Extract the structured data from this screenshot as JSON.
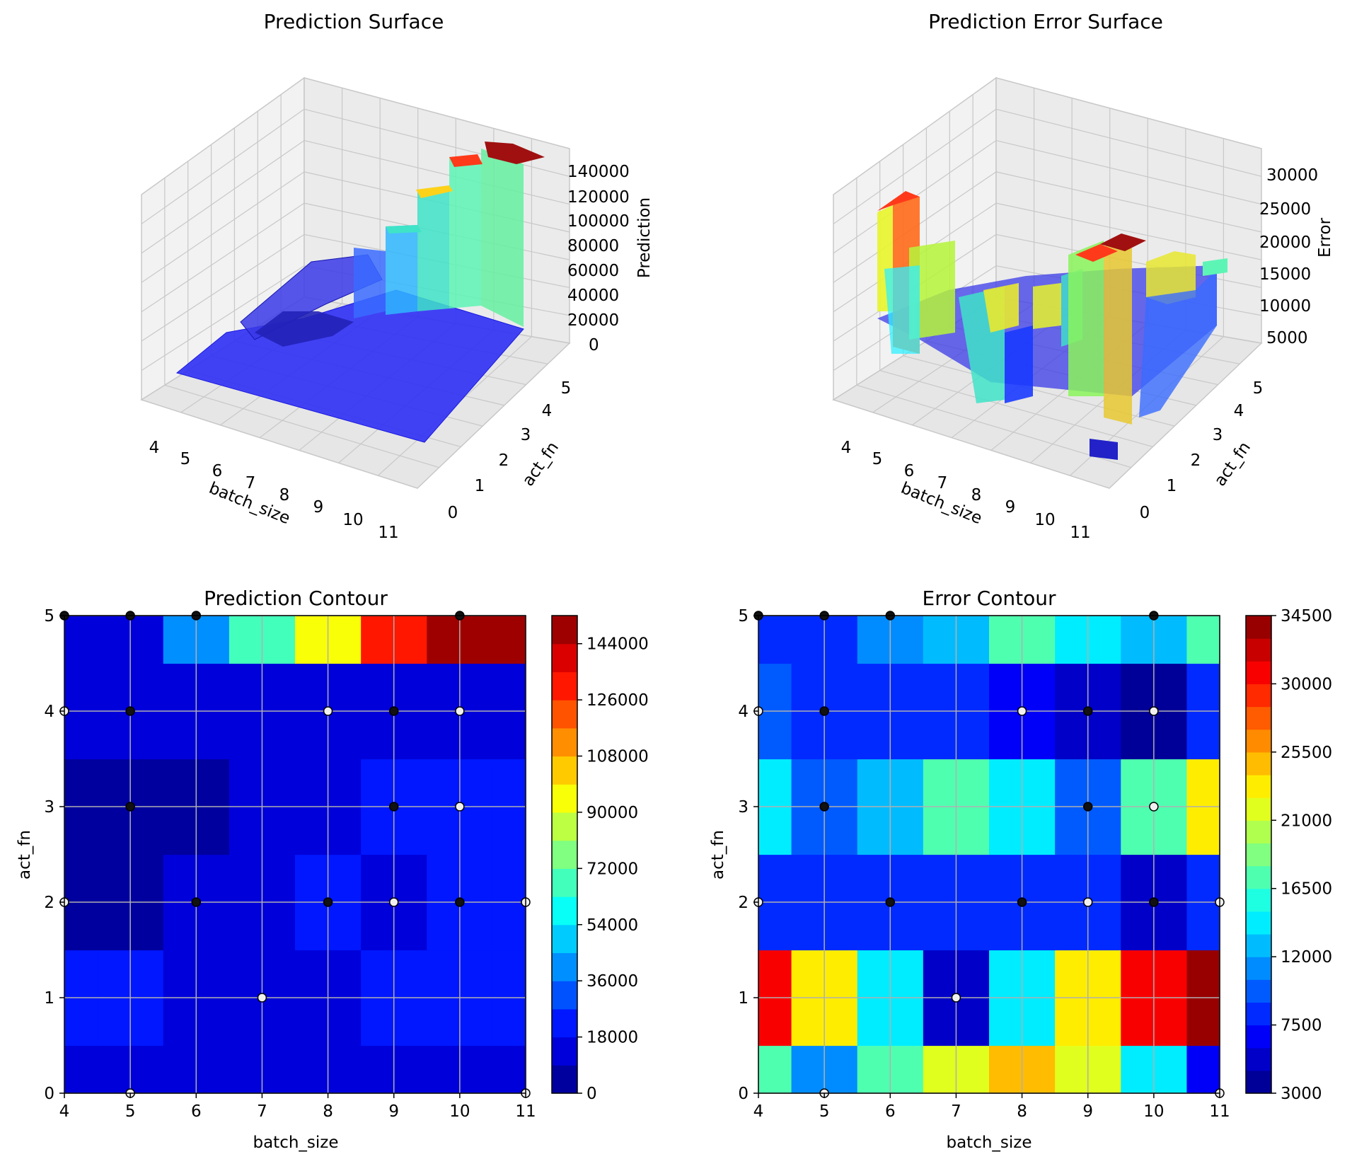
{
  "colors": {
    "background": "#ffffff",
    "grid": "#b0b0b0",
    "pane": "#f2f2f2",
    "pane_line": "#c8c8c8",
    "point_dark": "#111111",
    "point_light": "#f0f0f0"
  },
  "chart_data": [
    {
      "type": "surface3d",
      "title": "Prediction Surface",
      "xlabel": "batch_size",
      "ylabel": "act_fn",
      "zlabel": "Prediction",
      "x_ticks": [
        "4",
        "5",
        "6",
        "7",
        "8",
        "9",
        "10",
        "11"
      ],
      "y_ticks": [
        "0",
        "1",
        "2",
        "3",
        "4",
        "5"
      ],
      "z_ticks": [
        "0",
        "20000",
        "40000",
        "60000",
        "80000",
        "100000",
        "120000",
        "140000"
      ],
      "zlim": [
        0,
        150000
      ],
      "colormap": "jet"
    },
    {
      "type": "surface3d",
      "title": "Prediction Error Surface",
      "xlabel": "batch_size",
      "ylabel": "act_fn",
      "zlabel": "Error",
      "x_ticks": [
        "4",
        "5",
        "6",
        "7",
        "8",
        "9",
        "10",
        "11"
      ],
      "y_ticks": [
        "0",
        "1",
        "2",
        "3",
        "4",
        "5"
      ],
      "z_ticks": [
        "5000",
        "10000",
        "15000",
        "20000",
        "25000",
        "30000"
      ],
      "zlim": [
        3000,
        33000
      ],
      "colormap": "jet"
    },
    {
      "type": "heatmap",
      "title": "Prediction Contour",
      "xlabel": "batch_size",
      "ylabel": "act_fn",
      "x": [
        4,
        5,
        6,
        7,
        8,
        9,
        10,
        11
      ],
      "y": [
        0,
        1,
        2,
        3,
        4,
        5
      ],
      "xlim": [
        4,
        11
      ],
      "ylim": [
        0,
        5
      ],
      "x_ticks": [
        "4",
        "5",
        "6",
        "7",
        "8",
        "9",
        "10",
        "11"
      ],
      "y_ticks": [
        "0",
        "1",
        "2",
        "3",
        "4",
        "5"
      ],
      "z": [
        [
          14000,
          14000,
          14000,
          14000,
          15000,
          15000,
          15000,
          15000
        ],
        [
          25000,
          25000,
          14000,
          14000,
          14000,
          24000,
          24000,
          24000
        ],
        [
          6000,
          8000,
          14000,
          14000,
          22000,
          14000,
          18000,
          20000
        ],
        [
          4000,
          4000,
          8000,
          12000,
          14000,
          20000,
          20000,
          20000
        ],
        [
          12000,
          14000,
          14000,
          14000,
          14000,
          14000,
          14000,
          17000
        ],
        [
          14000,
          14000,
          38000,
          66000,
          98000,
          134000,
          152000,
          146000
        ]
      ],
      "colorbar": {
        "min": 0,
        "max": 153000,
        "step": 9000,
        "ticks": [
          "0",
          "18000",
          "36000",
          "54000",
          "72000",
          "90000",
          "108000",
          "126000",
          "144000"
        ]
      },
      "sample_points": [
        {
          "x": 4,
          "y": 5,
          "c": "dark"
        },
        {
          "x": 5,
          "y": 5,
          "c": "dark"
        },
        {
          "x": 6,
          "y": 5,
          "c": "dark"
        },
        {
          "x": 10,
          "y": 5,
          "c": "dark"
        },
        {
          "x": 4,
          "y": 4,
          "c": "light"
        },
        {
          "x": 5,
          "y": 4,
          "c": "dark"
        },
        {
          "x": 8,
          "y": 4,
          "c": "light"
        },
        {
          "x": 9,
          "y": 4,
          "c": "dark"
        },
        {
          "x": 10,
          "y": 4,
          "c": "light"
        },
        {
          "x": 5,
          "y": 3,
          "c": "dark"
        },
        {
          "x": 9,
          "y": 3,
          "c": "dark"
        },
        {
          "x": 10,
          "y": 3,
          "c": "light"
        },
        {
          "x": 4,
          "y": 2,
          "c": "light"
        },
        {
          "x": 6,
          "y": 2,
          "c": "dark"
        },
        {
          "x": 8,
          "y": 2,
          "c": "dark"
        },
        {
          "x": 9,
          "y": 2,
          "c": "light"
        },
        {
          "x": 10,
          "y": 2,
          "c": "dark"
        },
        {
          "x": 11,
          "y": 2,
          "c": "light"
        },
        {
          "x": 7,
          "y": 1,
          "c": "light"
        },
        {
          "x": 5,
          "y": 0,
          "c": "light"
        },
        {
          "x": 11,
          "y": 0,
          "c": "light"
        }
      ]
    },
    {
      "type": "heatmap",
      "title": "Error Contour",
      "xlabel": "batch_size",
      "ylabel": "act_fn",
      "x": [
        4,
        5,
        6,
        7,
        8,
        9,
        10,
        11
      ],
      "y": [
        0,
        1,
        2,
        3,
        4,
        5
      ],
      "xlim": [
        4,
        11
      ],
      "ylim": [
        0,
        5
      ],
      "x_ticks": [
        "4",
        "5",
        "6",
        "7",
        "8",
        "9",
        "10",
        "11"
      ],
      "y_ticks": [
        "0",
        "1",
        "2",
        "3",
        "4",
        "5"
      ],
      "z": [
        [
          16500,
          11000,
          16500,
          21000,
          24500,
          21000,
          13500,
          6000
        ],
        [
          30000,
          22500,
          14500,
          4500,
          14500,
          22500,
          30000,
          34000
        ],
        [
          7500,
          7500,
          7500,
          7500,
          7500,
          7500,
          4500,
          7500
        ],
        [
          14500,
          9500,
          13000,
          16500,
          14500,
          10000,
          16500,
          22500
        ],
        [
          9500,
          7500,
          7500,
          7500,
          6000,
          5000,
          4000,
          7500
        ],
        [
          7500,
          7500,
          10500,
          12000,
          16500,
          14500,
          12500,
          17500
        ]
      ],
      "colorbar": {
        "min": 3000,
        "max": 34500,
        "step": 1500,
        "ticks": [
          "3000",
          "7500",
          "12000",
          "16500",
          "21000",
          "25500",
          "30000",
          "34500"
        ]
      },
      "sample_points": [
        {
          "x": 4,
          "y": 5,
          "c": "dark"
        },
        {
          "x": 5,
          "y": 5,
          "c": "dark"
        },
        {
          "x": 6,
          "y": 5,
          "c": "dark"
        },
        {
          "x": 10,
          "y": 5,
          "c": "dark"
        },
        {
          "x": 4,
          "y": 4,
          "c": "light"
        },
        {
          "x": 5,
          "y": 4,
          "c": "dark"
        },
        {
          "x": 8,
          "y": 4,
          "c": "light"
        },
        {
          "x": 9,
          "y": 4,
          "c": "dark"
        },
        {
          "x": 10,
          "y": 4,
          "c": "light"
        },
        {
          "x": 5,
          "y": 3,
          "c": "dark"
        },
        {
          "x": 9,
          "y": 3,
          "c": "dark"
        },
        {
          "x": 10,
          "y": 3,
          "c": "light"
        },
        {
          "x": 4,
          "y": 2,
          "c": "light"
        },
        {
          "x": 6,
          "y": 2,
          "c": "dark"
        },
        {
          "x": 8,
          "y": 2,
          "c": "dark"
        },
        {
          "x": 9,
          "y": 2,
          "c": "light"
        },
        {
          "x": 10,
          "y": 2,
          "c": "dark"
        },
        {
          "x": 11,
          "y": 2,
          "c": "light"
        },
        {
          "x": 7,
          "y": 1,
          "c": "light"
        },
        {
          "x": 5,
          "y": 0,
          "c": "light"
        },
        {
          "x": 11,
          "y": 0,
          "c": "light"
        }
      ]
    }
  ]
}
